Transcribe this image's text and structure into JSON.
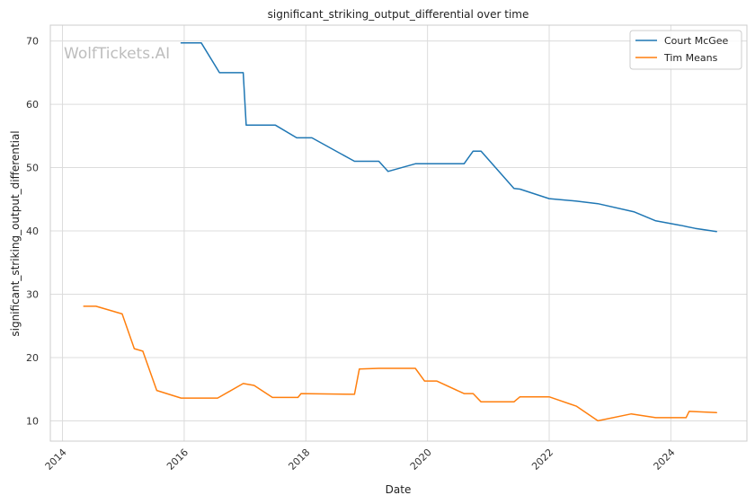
{
  "chart_data": {
    "type": "line",
    "title": "significant_striking_output_differential over time",
    "xlabel": "Date",
    "ylabel": "significant_striking_output_differential",
    "watermark": "WolfTickets.AI",
    "xlim": [
      2013.8,
      2025.25
    ],
    "ylim": [
      6.8,
      72.5
    ],
    "x_ticks": [
      2014,
      2016,
      2018,
      2020,
      2022,
      2024
    ],
    "x_tick_labels": [
      "2014",
      "2016",
      "2018",
      "2020",
      "2022",
      "2024"
    ],
    "y_ticks": [
      10,
      20,
      30,
      40,
      50,
      60,
      70
    ],
    "y_tick_labels": [
      "10",
      "20",
      "30",
      "40",
      "50",
      "60",
      "70"
    ],
    "grid": true,
    "legend_position": "top-right",
    "series": [
      {
        "name": "Court McGee",
        "color": "#1f77b4",
        "x": [
          2015.95,
          2016.28,
          2016.58,
          2016.97,
          2017.02,
          2017.5,
          2017.85,
          2018.1,
          2018.8,
          2019.2,
          2019.35,
          2019.8,
          2020.6,
          2020.75,
          2020.88,
          2021.42,
          2021.52,
          2022.0,
          2022.45,
          2022.8,
          2023.4,
          2023.75,
          2024.15,
          2024.4,
          2024.75
        ],
        "y": [
          69.7,
          69.7,
          65.0,
          65.0,
          56.7,
          56.7,
          54.7,
          54.7,
          51.0,
          51.0,
          49.4,
          50.6,
          50.6,
          52.6,
          52.6,
          46.7,
          46.6,
          45.1,
          44.7,
          44.3,
          43.0,
          41.6,
          40.9,
          40.4,
          39.9
        ]
      },
      {
        "name": "Tim Means",
        "color": "#ff7f0e",
        "x": [
          2014.35,
          2014.55,
          2014.98,
          2015.18,
          2015.32,
          2015.55,
          2015.95,
          2016.55,
          2016.97,
          2017.15,
          2017.45,
          2017.87,
          2017.92,
          2018.8,
          2018.88,
          2019.2,
          2019.8,
          2019.95,
          2020.15,
          2020.6,
          2020.75,
          2020.88,
          2021.42,
          2021.52,
          2022.0,
          2022.45,
          2022.8,
          2023.35,
          2023.75,
          2024.25,
          2024.3,
          2024.75
        ],
        "y": [
          28.1,
          28.1,
          26.9,
          21.4,
          21.0,
          14.8,
          13.6,
          13.6,
          15.9,
          15.6,
          13.7,
          13.7,
          14.3,
          14.2,
          18.2,
          18.3,
          18.3,
          16.3,
          16.3,
          14.3,
          14.3,
          13.0,
          13.0,
          13.8,
          13.8,
          12.3,
          10.0,
          11.1,
          10.5,
          10.5,
          11.5,
          11.3
        ]
      }
    ]
  }
}
